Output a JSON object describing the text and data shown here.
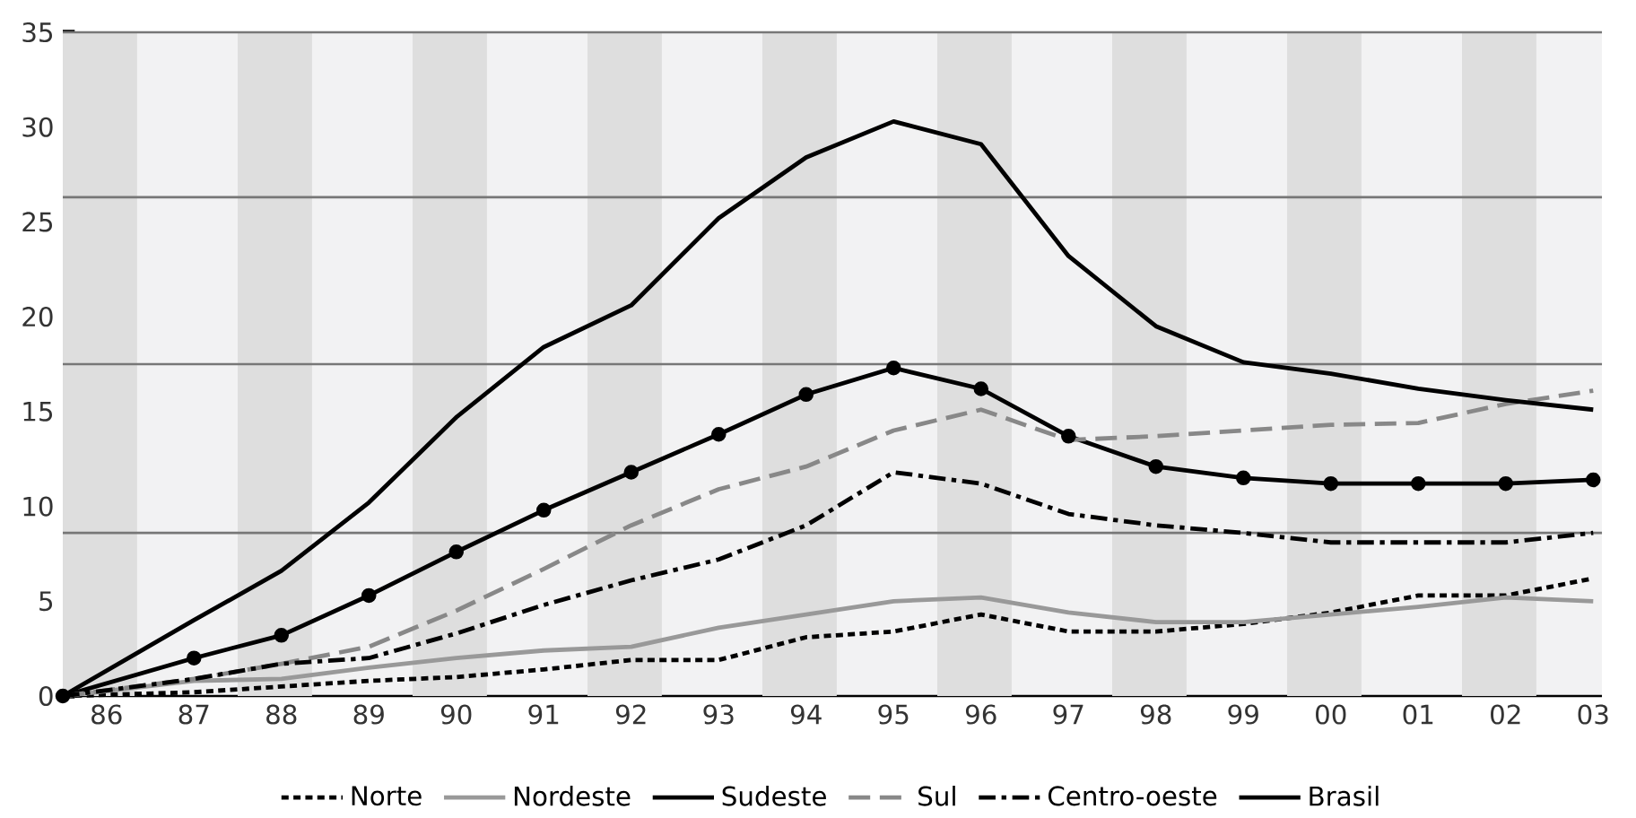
{
  "chart_data": {
    "type": "line",
    "x": [
      1985.5,
      1987,
      1988,
      1989,
      1990,
      1991,
      1992,
      1993,
      1994,
      1995,
      1996,
      1997,
      1998,
      1999,
      2000,
      2001,
      2002,
      2003
    ],
    "series": [
      {
        "name": "Norte",
        "color": "#000000",
        "line_style": "dotted",
        "marker": "none",
        "values": [
          0,
          0.2,
          0.5,
          0.8,
          1.0,
          1.4,
          1.9,
          1.9,
          3.1,
          3.4,
          4.3,
          3.4,
          3.4,
          3.8,
          4.4,
          5.3,
          5.3,
          6.2
        ]
      },
      {
        "name": "Nordeste",
        "color": "#999999",
        "line_style": "solid",
        "marker": "none",
        "values": [
          0,
          0.8,
          0.9,
          1.5,
          2.0,
          2.4,
          2.6,
          3.6,
          4.3,
          5.0,
          5.2,
          4.4,
          3.9,
          3.9,
          4.3,
          4.7,
          5.2,
          5.0
        ]
      },
      {
        "name": "Sudeste",
        "color": "#000000",
        "line_style": "solid",
        "marker": "circle",
        "values": [
          0,
          2.0,
          3.2,
          5.3,
          7.6,
          9.8,
          11.8,
          13.8,
          15.9,
          17.3,
          16.2,
          13.7,
          12.1,
          11.5,
          11.2,
          11.2,
          11.2,
          11.4
        ]
      },
      {
        "name": "Sul",
        "color": "#888888",
        "line_style": "dashed",
        "marker": "none",
        "values": [
          0,
          0.9,
          1.7,
          2.6,
          4.5,
          6.7,
          9.0,
          10.9,
          12.1,
          14.0,
          15.1,
          13.5,
          13.7,
          14.0,
          14.3,
          14.4,
          15.4,
          16.1
        ]
      },
      {
        "name": "Centro-oeste",
        "color": "#000000",
        "line_style": "dashdot",
        "marker": "none",
        "values": [
          0,
          0.9,
          1.7,
          2.0,
          3.3,
          4.8,
          6.1,
          7.2,
          9.0,
          11.8,
          11.2,
          9.6,
          9.0,
          8.6,
          8.1,
          8.1,
          8.1,
          8.6
        ]
      },
      {
        "name": "Brasil",
        "color": "#000000",
        "line_style": "solid",
        "marker": "none",
        "values": [
          0,
          4.0,
          6.6,
          10.2,
          14.7,
          18.4,
          20.6,
          25.2,
          28.4,
          30.3,
          29.1,
          23.2,
          19.5,
          17.6,
          17.0,
          16.2,
          15.6,
          15.1
        ]
      }
    ],
    "xlim": [
      1985.5,
      2003.1
    ],
    "xticks": [
      {
        "value": 1986,
        "label": "86"
      },
      {
        "value": 1987,
        "label": "87"
      },
      {
        "value": 1988,
        "label": "88"
      },
      {
        "value": 1989,
        "label": "89"
      },
      {
        "value": 1990,
        "label": "90"
      },
      {
        "value": 1991,
        "label": "91"
      },
      {
        "value": 1992,
        "label": "92"
      },
      {
        "value": 1993,
        "label": "93"
      },
      {
        "value": 1994,
        "label": "94"
      },
      {
        "value": 1995,
        "label": "95"
      },
      {
        "value": 1996,
        "label": "96"
      },
      {
        "value": 1997,
        "label": "97"
      },
      {
        "value": 1998,
        "label": "98"
      },
      {
        "value": 1999,
        "label": "99"
      },
      {
        "value": 2000,
        "label": "00"
      },
      {
        "value": 2001,
        "label": "01"
      },
      {
        "value": 2002,
        "label": "02"
      },
      {
        "value": 2003,
        "label": "03"
      }
    ],
    "ylim": [
      0,
      35
    ],
    "yticks": [
      0,
      5,
      10,
      15,
      20,
      25,
      30,
      35
    ],
    "bands": [
      {
        "axis": "x",
        "from": 1985.5,
        "to": 1986.35,
        "color": "#dedede"
      },
      {
        "axis": "x",
        "from": 1987.5,
        "to": 1988.35,
        "color": "#dedede"
      },
      {
        "axis": "x",
        "from": 1989.5,
        "to": 1990.35,
        "color": "#dedede"
      },
      {
        "axis": "x",
        "from": 1991.5,
        "to": 1992.35,
        "color": "#dedede"
      },
      {
        "axis": "x",
        "from": 1993.5,
        "to": 1994.35,
        "color": "#dedede"
      },
      {
        "axis": "x",
        "from": 1995.5,
        "to": 1996.35,
        "color": "#dedede"
      },
      {
        "axis": "x",
        "from": 1997.5,
        "to": 1998.35,
        "color": "#dedede"
      },
      {
        "axis": "x",
        "from": 1999.5,
        "to": 2000.35,
        "color": "#dedede"
      },
      {
        "axis": "x",
        "from": 2001.5,
        "to": 2002.35,
        "color": "#dedede"
      }
    ],
    "ref_lines": [
      {
        "axis": "y",
        "value": 8.6,
        "color": "#777777"
      },
      {
        "axis": "y",
        "value": 17.5,
        "color": "#777777"
      },
      {
        "axis": "y",
        "value": 26.3,
        "color": "#777777"
      },
      {
        "axis": "y",
        "value": 35,
        "color": "#777777"
      }
    ],
    "grid": false,
    "legend": "bottom"
  }
}
